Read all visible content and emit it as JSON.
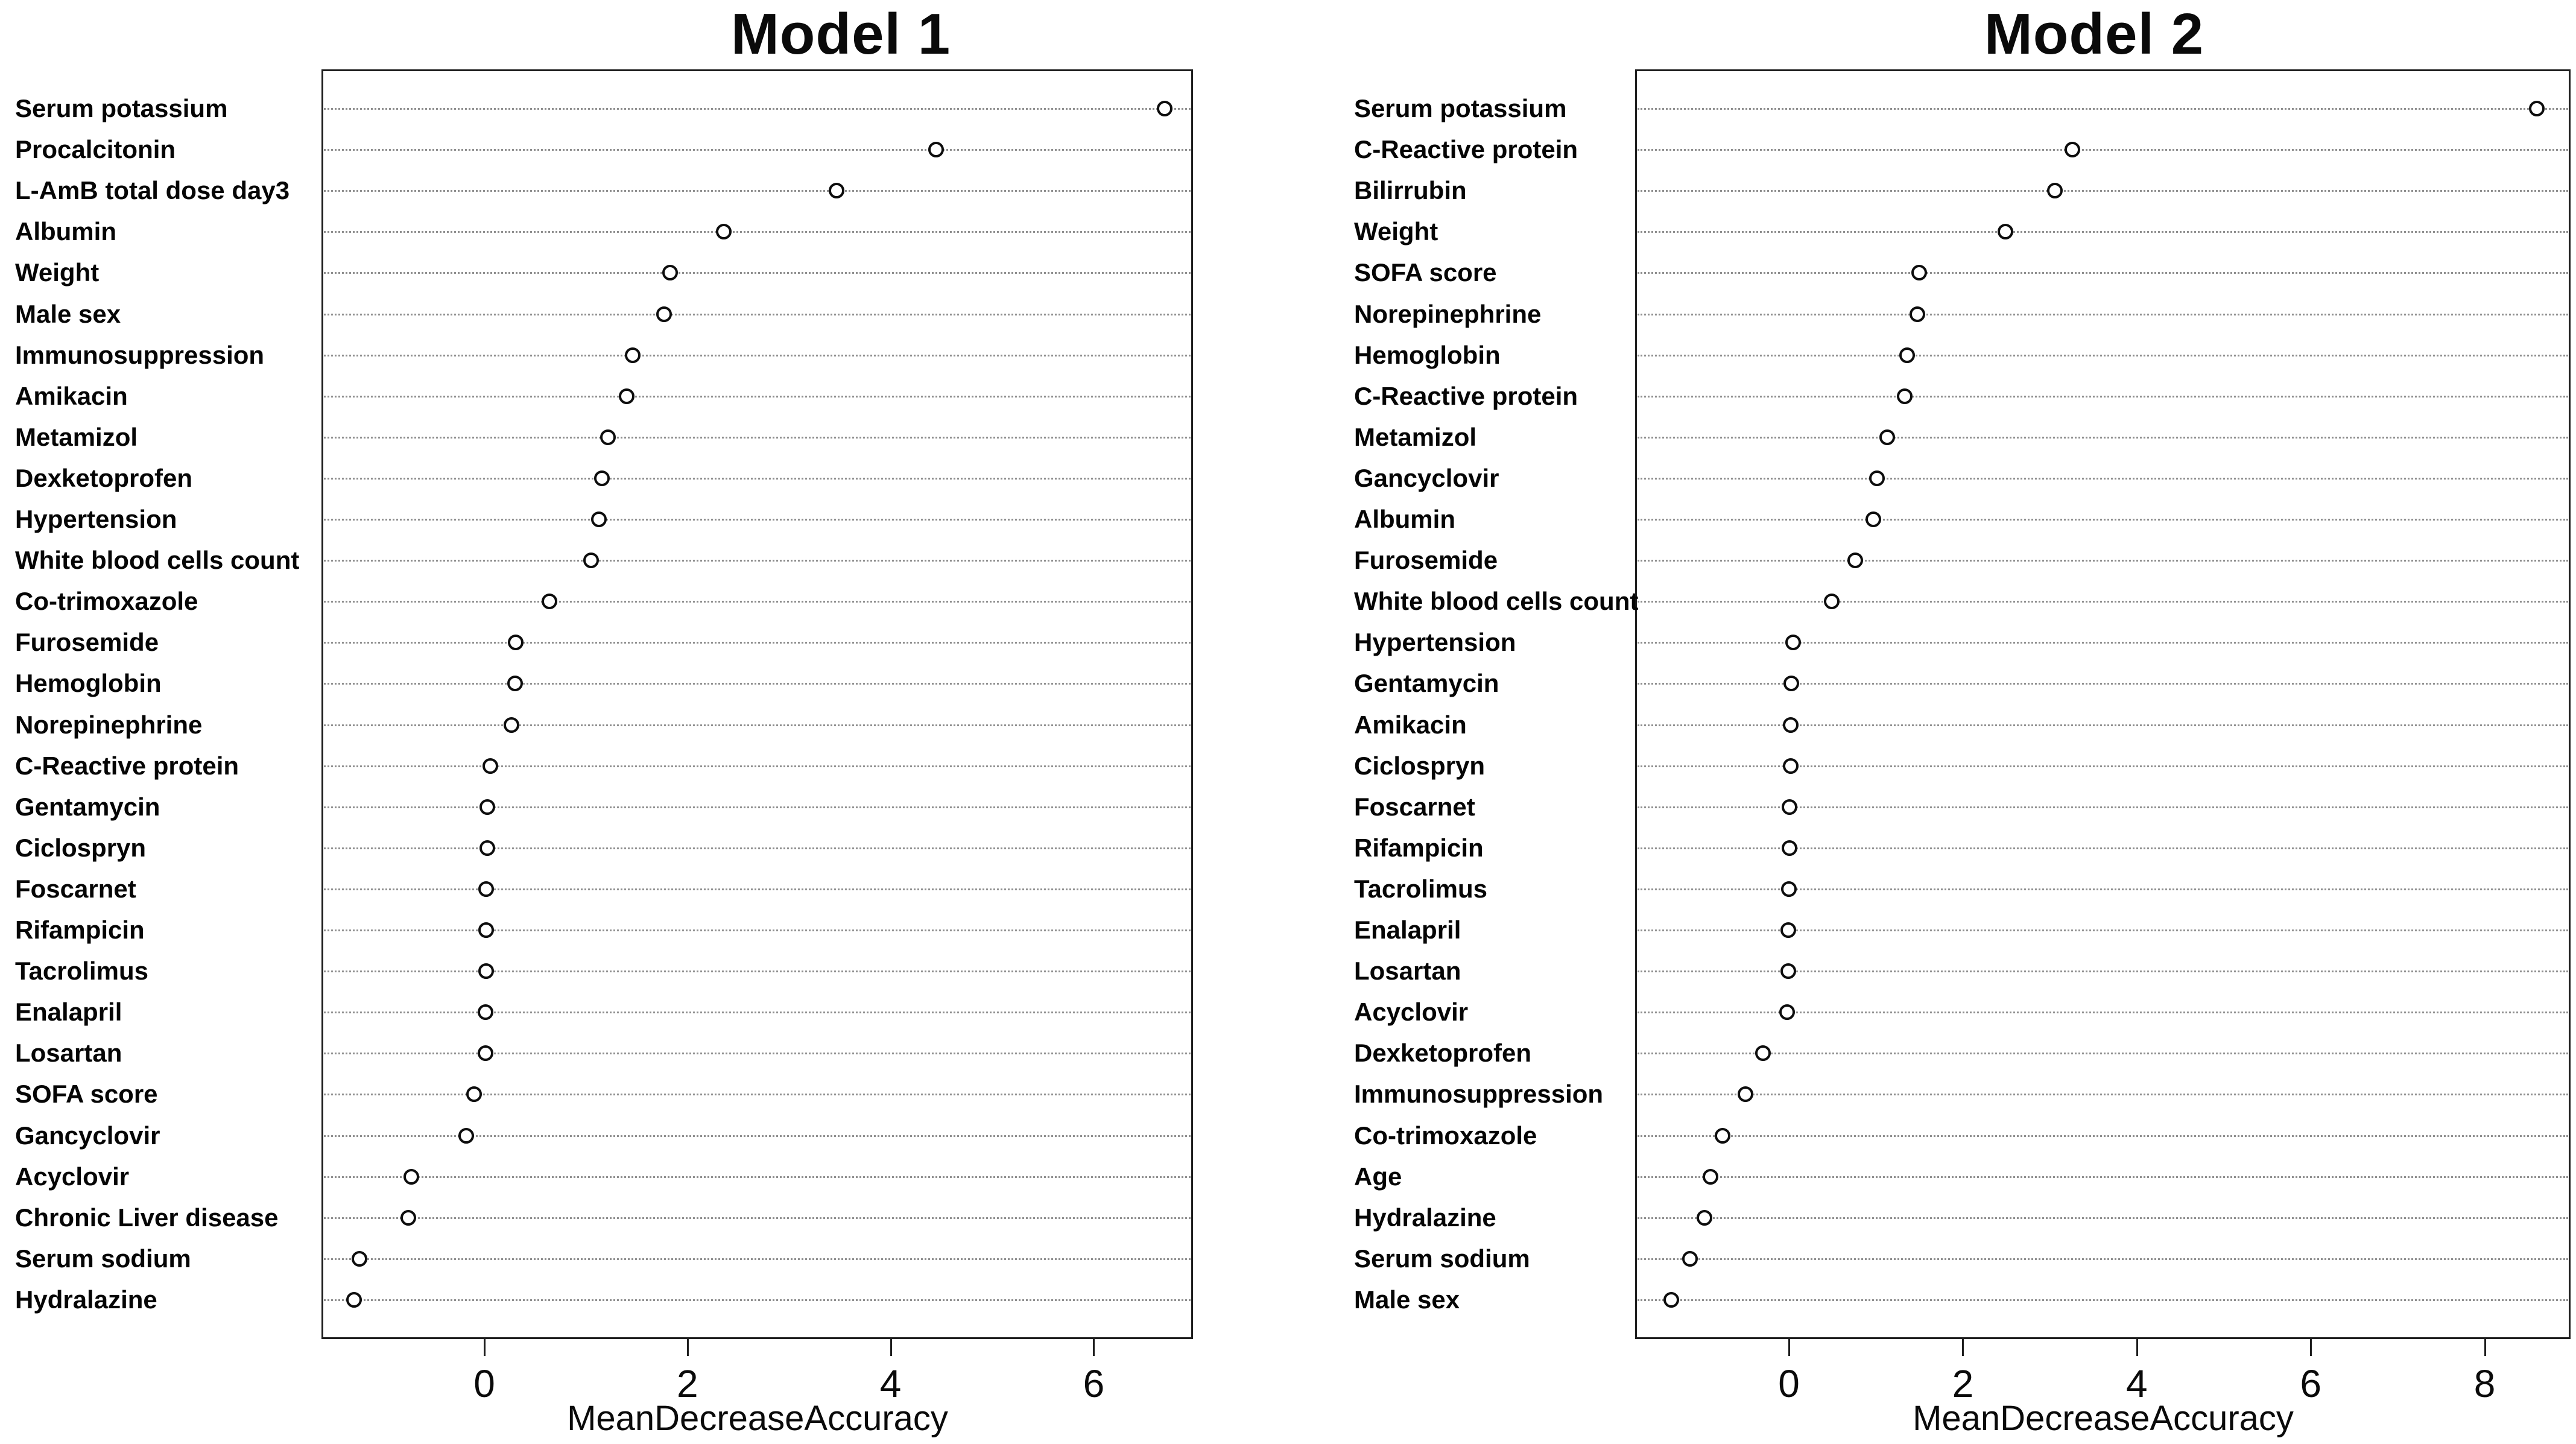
{
  "figure_name": "Random forest variable importance plots",
  "colors": {
    "background": "#ffffff",
    "text": "#000000",
    "box_border": "#1f1f1f",
    "grid_dots": "#8f8f8f",
    "dot_stroke": "#0d0d0d",
    "dot_fill": "#ffffff"
  },
  "chart_data": [
    {
      "type": "scatter",
      "variant": "dot-plot",
      "title": "Model 1",
      "xlabel": "MeanDecreaseAccuracy",
      "xlim": [
        -1.6,
        7.0
      ],
      "xticks": [
        0,
        2,
        4,
        6
      ],
      "grid": "horizontal-dotted",
      "legend": "none",
      "categories": [
        "Serum potassium",
        "Procalcitonin",
        "L-AmB total dose day3",
        "Albumin",
        "Weight",
        "Male sex",
        "Immunosuppression",
        "Amikacin",
        "Metamizol",
        "Dexketoprofen",
        "Hypertension",
        "White blood cells count",
        "Co-trimoxazole",
        "Furosemide",
        "Hemoglobin",
        "Norepinephrine",
        "C-Reactive protein",
        "Gentamycin",
        "Ciclospryn",
        "Foscarnet",
        "Rifampicin",
        "Tacrolimus",
        "Enalapril",
        "Losartan",
        "SOFA score",
        "Gancyclovir",
        "Acyclovir",
        "Chronic Liver disease",
        "Serum sodium",
        "Hydralazine"
      ],
      "values": [
        6.7,
        4.45,
        3.47,
        2.36,
        1.83,
        1.77,
        1.46,
        1.4,
        1.22,
        1.16,
        1.13,
        1.05,
        0.64,
        0.31,
        0.3,
        0.27,
        0.06,
        0.03,
        0.03,
        0.02,
        0.02,
        0.02,
        0.01,
        0.01,
        -0.1,
        -0.18,
        -0.72,
        -0.75,
        -1.23,
        -1.28
      ]
    },
    {
      "type": "scatter",
      "variant": "dot-plot",
      "title": "Model 2",
      "xlabel": "MeanDecreaseAccuracy",
      "xlim": [
        -1.77,
        9.0
      ],
      "xticks": [
        0,
        2,
        4,
        6,
        8
      ],
      "grid": "horizontal-dotted",
      "legend": "none",
      "categories": [
        "Serum potassium",
        "C-Reactive protein",
        "Bilirrubin",
        "Weight",
        "SOFA score",
        "Norepinephrine",
        "Hemoglobin",
        "C-Reactive protein",
        "Metamizol",
        "Gancyclovir",
        "Albumin",
        "Furosemide",
        "White blood cells count",
        "Hypertension",
        "Gentamycin",
        "Amikacin",
        "Ciclospryn",
        "Foscarnet",
        "Rifampicin",
        "Tacrolimus",
        "Enalapril",
        "Losartan",
        "Acyclovir",
        "Dexketoprofen",
        "Immunosuppression",
        "Co-trimoxazole",
        "Age",
        "Hydralazine",
        "Serum sodium",
        "Male sex"
      ],
      "values": [
        8.6,
        3.26,
        3.06,
        2.49,
        1.5,
        1.48,
        1.36,
        1.33,
        1.13,
        1.01,
        0.97,
        0.76,
        0.49,
        0.05,
        0.03,
        0.02,
        0.02,
        0.01,
        0.01,
        0.0,
        -0.01,
        -0.01,
        -0.02,
        -0.3,
        -0.5,
        -0.76,
        -0.9,
        -0.97,
        -1.14,
        -1.35
      ]
    }
  ]
}
